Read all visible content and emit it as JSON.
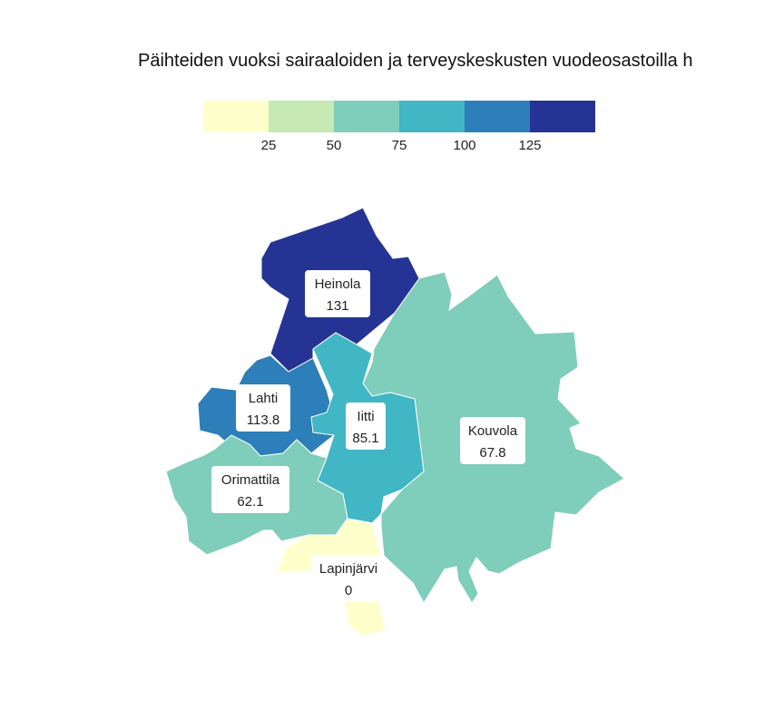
{
  "title": "Päihteiden vuoksi sairaaloiden ja terveyskeskusten vuodeosastoilla h",
  "legend": {
    "colors": [
      "#ffffcc",
      "#c7e9b4",
      "#7fcdbb",
      "#41b6c4",
      "#2c7fb8",
      "#253494"
    ],
    "ticks": [
      "25",
      "50",
      "75",
      "100",
      "125"
    ]
  },
  "regions": [
    {
      "id": "heinola",
      "name": "Heinola",
      "value": "131",
      "color": "#253494"
    },
    {
      "id": "lahti",
      "name": "Lahti",
      "value": "113.8",
      "color": "#2c7fb8"
    },
    {
      "id": "iitti",
      "name": "Iitti",
      "value": "85.1",
      "color": "#41b6c4"
    },
    {
      "id": "kouvola",
      "name": "Kouvola",
      "value": "67.8",
      "color": "#7fcdbb"
    },
    {
      "id": "orimattila",
      "name": "Orimattila",
      "value": "62.1",
      "color": "#7fcdbb"
    },
    {
      "id": "lapinjarvi",
      "name": "Lapinjärvi",
      "value": "0",
      "color": "#ffffcc"
    }
  ]
}
